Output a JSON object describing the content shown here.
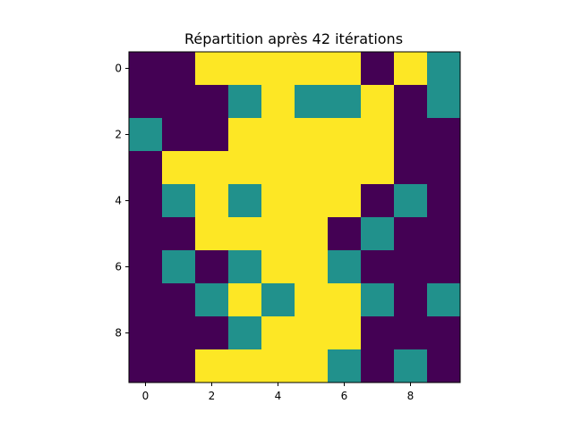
{
  "chart_data": {
    "type": "heatmap",
    "title": "Répartition après 42 itérations",
    "xlabel": "",
    "ylabel": "",
    "xlim": [
      -0.5,
      9.5
    ],
    "ylim": [
      9.5,
      -0.5
    ],
    "x_ticks": [
      0,
      2,
      4,
      6,
      8
    ],
    "y_ticks": [
      0,
      2,
      4,
      6,
      8
    ],
    "x_tick_labels": [
      "0",
      "2",
      "4",
      "6",
      "8"
    ],
    "y_tick_labels": [
      "0",
      "2",
      "4",
      "6",
      "8"
    ],
    "grid": false,
    "colormap": "viridis",
    "value_colors": {
      "0": "#440154",
      "1": "#21918c",
      "2": "#fde725"
    },
    "values": [
      [
        0,
        0,
        2,
        2,
        2,
        2,
        2,
        0,
        2,
        1
      ],
      [
        0,
        0,
        0,
        1,
        2,
        1,
        1,
        2,
        0,
        1
      ],
      [
        1,
        0,
        0,
        2,
        2,
        2,
        2,
        2,
        0,
        0
      ],
      [
        0,
        2,
        2,
        2,
        2,
        2,
        2,
        2,
        0,
        0
      ],
      [
        0,
        1,
        2,
        1,
        2,
        2,
        2,
        0,
        1,
        0
      ],
      [
        0,
        0,
        2,
        2,
        2,
        2,
        0,
        1,
        0,
        0
      ],
      [
        0,
        1,
        0,
        1,
        2,
        2,
        1,
        0,
        0,
        0
      ],
      [
        0,
        0,
        1,
        2,
        1,
        2,
        2,
        1,
        0,
        1
      ],
      [
        0,
        0,
        0,
        1,
        2,
        2,
        2,
        0,
        0,
        0
      ],
      [
        0,
        0,
        2,
        2,
        2,
        2,
        1,
        0,
        1,
        0
      ]
    ]
  }
}
